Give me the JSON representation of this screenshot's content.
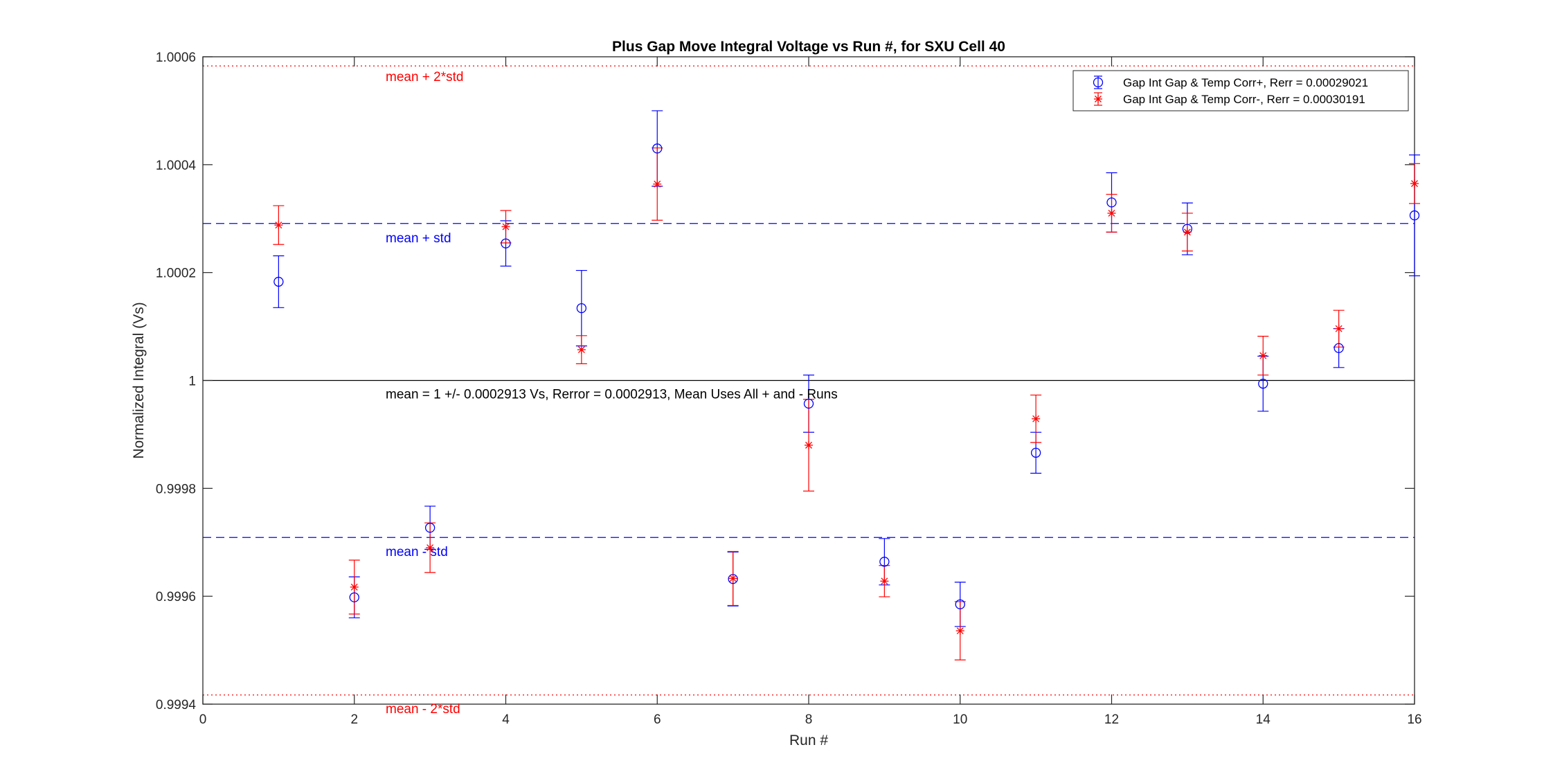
{
  "chart_data": {
    "type": "scatter",
    "title": "Plus Gap Move Integral Voltage vs Run #, for SXU Cell 40",
    "xlabel": "Run #",
    "ylabel": "Normalized Integral (Vs)",
    "xlim": [
      0,
      16
    ],
    "ylim": [
      0.9994,
      1.0006
    ],
    "xticks": [
      0,
      2,
      4,
      6,
      8,
      10,
      12,
      14,
      16
    ],
    "xtick_labels": [
      "0",
      "2",
      "4",
      "6",
      "8",
      "10",
      "12",
      "14",
      "16"
    ],
    "yticks": [
      0.9994,
      0.9996,
      0.9998,
      1.0,
      1.0002,
      1.0004,
      1.0006
    ],
    "ytick_labels": [
      "0.9994",
      "0.9996",
      "0.9998",
      "1",
      "1.0002",
      "1.0004",
      "1.0006"
    ],
    "grid": false,
    "legend_position": "top-right",
    "series": [
      {
        "name": "Gap Int Gap & Temp Corr+, Rerr = 0.00029021",
        "marker": "circle",
        "color": "#0000ff",
        "x": [
          1,
          2,
          3,
          4,
          5,
          6,
          7,
          8,
          9,
          10,
          11,
          12,
          13,
          14,
          15,
          16
        ],
        "y": [
          1.000183,
          0.999598,
          0.999727,
          1.000254,
          1.000134,
          1.00043,
          0.999632,
          0.999957,
          0.999664,
          0.999585,
          0.999866,
          1.00033,
          1.000281,
          0.999994,
          1.00006,
          1.000306
        ],
        "err": [
          4.8e-05,
          3.8e-05,
          4e-05,
          4.2e-05,
          7e-05,
          7e-05,
          5e-05,
          5.3e-05,
          4.3e-05,
          4.1e-05,
          3.8e-05,
          5.5e-05,
          4.8e-05,
          5.1e-05,
          3.6e-05,
          0.000112
        ]
      },
      {
        "name": "Gap Int Gap & Temp  Corr-, Rerr = 0.00030191",
        "marker": "asterisk",
        "color": "#ff0000",
        "x": [
          1,
          2,
          3,
          4,
          5,
          6,
          7,
          8,
          9,
          10,
          11,
          12,
          13,
          14,
          15,
          16
        ],
        "y": [
          1.000288,
          0.999617,
          0.99969,
          1.000285,
          1.000057,
          1.000364,
          0.999633,
          0.99988,
          0.999628,
          0.999536,
          0.999929,
          1.00031,
          1.000275,
          1.000046,
          1.000096,
          1.000365
        ],
        "err": [
          3.6e-05,
          5e-05,
          4.6e-05,
          3e-05,
          2.6e-05,
          6.7e-05,
          5e-05,
          8.5e-05,
          2.9e-05,
          5.4e-05,
          4.4e-05,
          3.5e-05,
          3.5e-05,
          3.6e-05,
          3.4e-05,
          3.7e-05
        ]
      }
    ],
    "reference_lines": [
      {
        "label": "mean + 2*std",
        "y": 1.000583,
        "style": "dotted",
        "color": "#ff0000"
      },
      {
        "label": "mean + std",
        "y": 1.000291,
        "style": "dashed",
        "color": "#0000ff"
      },
      {
        "label": "mean = 1 +/- 0.0002913 Vs, Rerror = 0.0002913, Mean Uses All + and - Runs",
        "y": 1.0,
        "style": "solid",
        "color": "#000000"
      },
      {
        "label": "mean - std",
        "y": 0.999709,
        "style": "dashed",
        "color": "#0000ff"
      },
      {
        "label": "mean - 2*std",
        "y": 0.999417,
        "style": "dotted",
        "color": "#ff0000"
      }
    ]
  }
}
